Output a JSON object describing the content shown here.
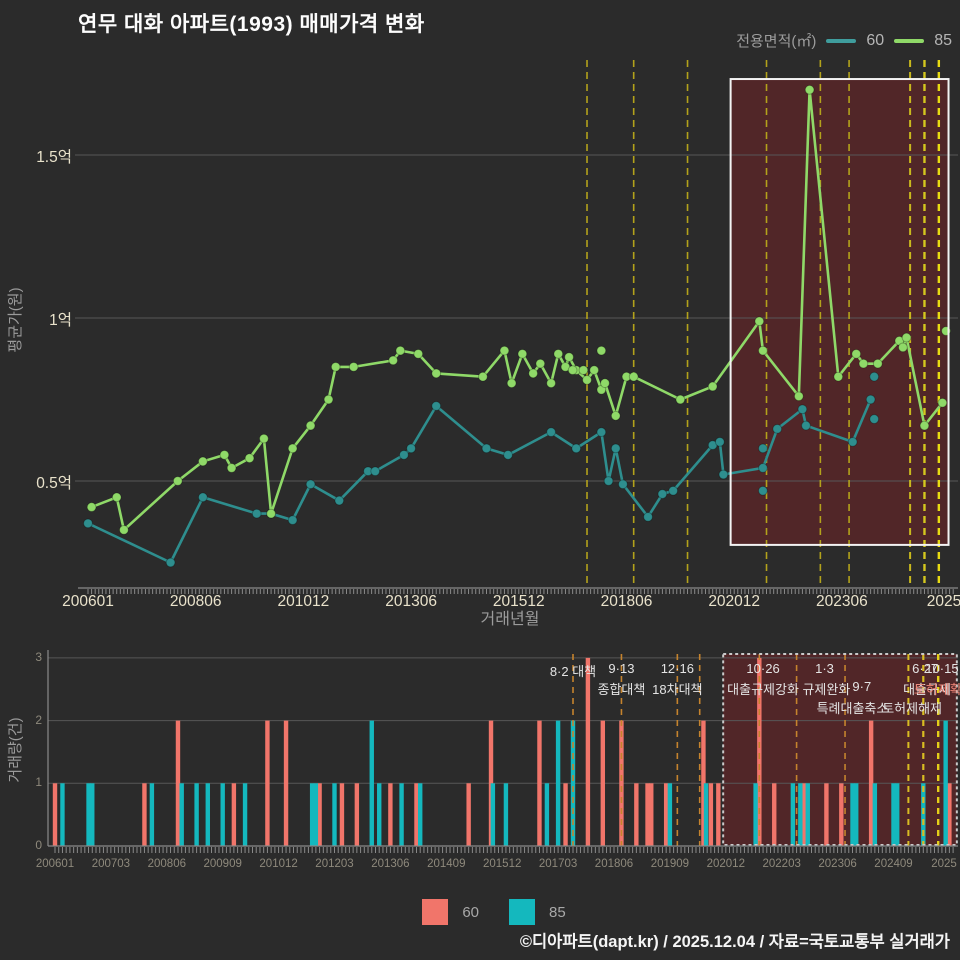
{
  "title": "연무 대화 아파트(1993) 매매가격 변화",
  "legend_top": {
    "label": "전용면적(㎡)",
    "items": [
      {
        "name": "60",
        "color": "#3f9d9d"
      },
      {
        "name": "85",
        "color": "#8fd968"
      }
    ]
  },
  "legend_bottom": {
    "items": [
      {
        "name": "60",
        "color": "#f1756a"
      },
      {
        "name": "85",
        "color": "#14b8be"
      }
    ]
  },
  "footer": "©디아파트(dapt.kr) / 2025.12.04 / 자료=국토교통부 실거래가",
  "chart_data": [
    {
      "type": "line",
      "title": "매매가격 변화",
      "xlabel": "거래년월",
      "ylabel": "평균가(원)",
      "x_unit": "months since 2006-01",
      "y_unit": "억원",
      "ylim": [
        0.17,
        1.79
      ],
      "grid": true,
      "x_ticks": [
        {
          "label": "200601",
          "m": 0
        },
        {
          "label": "200806",
          "m": 30
        },
        {
          "label": "201012",
          "m": 60
        },
        {
          "label": "201306",
          "m": 90
        },
        {
          "label": "201512",
          "m": 120
        },
        {
          "label": "201806",
          "m": 150
        },
        {
          "label": "202012",
          "m": 180
        },
        {
          "label": "202306",
          "m": 210
        },
        {
          "label": "2025",
          "m": 240
        }
      ],
      "y_ticks": [
        {
          "label": "0.5억",
          "v": 0.5
        },
        {
          "label": "1억",
          "v": 1.0
        },
        {
          "label": "1.5억",
          "v": 1.5
        }
      ],
      "series": [
        {
          "name": "60",
          "color": "#2e8e8e",
          "points": [
            [
              0,
              0.37
            ],
            [
              23,
              0.25
            ],
            [
              32,
              0.45
            ],
            [
              47,
              0.4
            ],
            [
              51,
              0.4
            ],
            [
              57,
              0.38
            ],
            [
              62,
              0.49
            ],
            [
              70,
              0.44
            ],
            [
              78,
              0.53
            ],
            [
              80,
              0.53
            ],
            [
              88,
              0.58
            ],
            [
              90,
              0.6
            ],
            [
              97,
              0.73
            ],
            [
              111,
              0.6
            ],
            [
              117,
              0.58
            ],
            [
              129,
              0.65
            ],
            [
              136,
              0.6
            ],
            [
              143,
              0.65
            ],
            [
              145,
              0.5
            ],
            [
              147,
              0.6
            ],
            [
              149,
              0.49
            ],
            [
              156,
              0.39
            ],
            [
              160,
              0.46
            ],
            [
              163,
              0.47
            ],
            [
              174,
              0.61
            ],
            [
              176,
              0.62
            ],
            [
              177,
              0.52
            ],
            [
              188,
              0.54
            ],
            [
              192,
              0.66
            ],
            [
              199,
              0.72
            ],
            [
              200,
              0.67
            ],
            [
              213,
              0.62
            ],
            [
              218,
              0.75
            ]
          ]
        },
        {
          "name": "85",
          "color": "#8fd968",
          "points": [
            [
              1,
              0.42
            ],
            [
              8,
              0.45
            ],
            [
              10,
              0.35
            ],
            [
              25,
              0.5
            ],
            [
              32,
              0.56
            ],
            [
              38,
              0.58
            ],
            [
              40,
              0.54
            ],
            [
              45,
              0.57
            ],
            [
              49,
              0.63
            ],
            [
              51,
              0.4
            ],
            [
              57,
              0.6
            ],
            [
              62,
              0.67
            ],
            [
              67,
              0.75
            ],
            [
              69,
              0.85
            ],
            [
              74,
              0.85
            ],
            [
              85,
              0.87
            ],
            [
              87,
              0.9
            ],
            [
              92,
              0.89
            ],
            [
              97,
              0.83
            ],
            [
              110,
              0.82
            ],
            [
              116,
              0.9
            ],
            [
              118,
              0.8
            ],
            [
              121,
              0.89
            ],
            [
              124,
              0.83
            ],
            [
              126,
              0.86
            ],
            [
              129,
              0.8
            ],
            [
              131,
              0.89
            ],
            [
              133,
              0.85
            ],
            [
              134,
              0.88
            ],
            [
              136,
              0.84
            ],
            [
              139,
              0.81
            ],
            [
              141,
              0.84
            ],
            [
              143,
              0.78
            ],
            [
              144,
              0.8
            ],
            [
              147,
              0.7
            ],
            [
              150,
              0.82
            ],
            [
              152,
              0.82
            ],
            [
              165,
              0.75
            ],
            [
              174,
              0.79
            ],
            [
              187,
              0.99
            ],
            [
              188,
              0.9
            ],
            [
              198,
              0.76
            ],
            [
              201,
              1.7
            ],
            [
              209,
              0.82
            ],
            [
              214,
              0.89
            ],
            [
              216,
              0.86
            ],
            [
              220,
              0.86
            ],
            [
              226,
              0.93
            ],
            [
              227,
              0.91
            ],
            [
              228,
              0.94
            ],
            [
              233,
              0.67
            ],
            [
              238,
              0.74
            ]
          ]
        }
      ],
      "extra_dots": [
        {
          "series": "60",
          "color": "#2e8e8e",
          "points": [
            [
              188,
              0.6
            ],
            [
              188,
              0.47
            ],
            [
              219,
              0.82
            ],
            [
              219,
              0.69
            ]
          ]
        },
        {
          "series": "85",
          "color": "#8fd968",
          "points": [
            [
              135,
              0.84
            ],
            [
              138,
              0.84
            ],
            [
              143,
              0.9
            ],
            [
              239,
              0.96
            ]
          ]
        }
      ],
      "policy_lines": [
        {
          "m": 139,
          "color": "#b3a21b",
          "w": 1.6
        },
        {
          "m": 152,
          "color": "#b3a21b",
          "w": 1.6
        },
        {
          "m": 167,
          "color": "#b3a21b",
          "w": 1.6
        },
        {
          "m": 189,
          "color": "#b3a21b",
          "w": 1.6
        },
        {
          "m": 204,
          "color": "#b3a21b",
          "w": 1.6
        },
        {
          "m": 212,
          "color": "#b3a21b",
          "w": 1.6
        },
        {
          "m": 229,
          "color": "#c9b91d",
          "w": 2.0
        },
        {
          "m": 233,
          "color": "#d4c71e",
          "w": 2.4
        },
        {
          "m": 237,
          "color": "#e9dc12",
          "w": 2.4
        }
      ],
      "highlight_box": {
        "m_start": 179,
        "m_end": 239.7,
        "v_top": 1.733,
        "v_bottom": 0.304,
        "fill": "rgba(160,30,36,0.33)",
        "border": "#f3f3f3"
      }
    },
    {
      "type": "bar",
      "xlabel": "",
      "ylabel": "거래량(건)",
      "x_unit": "months since 2006-01",
      "y_unit": "건",
      "ylim": [
        0,
        3
      ],
      "grid": true,
      "x_ticks": [
        {
          "label": "200601",
          "m": 0
        },
        {
          "label": "200703",
          "m": 15
        },
        {
          "label": "200806",
          "m": 30
        },
        {
          "label": "200909",
          "m": 45
        },
        {
          "label": "201012",
          "m": 60
        },
        {
          "label": "201203",
          "m": 75
        },
        {
          "label": "201306",
          "m": 90
        },
        {
          "label": "201409",
          "m": 105
        },
        {
          "label": "201512",
          "m": 120
        },
        {
          "label": "201703",
          "m": 135
        },
        {
          "label": "201806",
          "m": 150
        },
        {
          "label": "201909",
          "m": 165
        },
        {
          "label": "202012",
          "m": 180
        },
        {
          "label": "202203",
          "m": 195
        },
        {
          "label": "202306",
          "m": 210
        },
        {
          "label": "202409",
          "m": 225
        },
        {
          "label": "2025",
          "m": 240
        }
      ],
      "y_ticks": [
        {
          "label": "0",
          "v": 0
        },
        {
          "label": "1",
          "v": 1
        },
        {
          "label": "2",
          "v": 2
        },
        {
          "label": "3",
          "v": 3
        }
      ],
      "series": [
        {
          "name": "60",
          "color": "#f1756a",
          "bars": [
            [
              0,
              1
            ],
            [
              24,
              1
            ],
            [
              33,
              2
            ],
            [
              48,
              1
            ],
            [
              57,
              2
            ],
            [
              62,
              2
            ],
            [
              71,
              1
            ],
            [
              77,
              1
            ],
            [
              81,
              1
            ],
            [
              90,
              1
            ],
            [
              97,
              1
            ],
            [
              111,
              1
            ],
            [
              117,
              2
            ],
            [
              130,
              2
            ],
            [
              137,
              1
            ],
            [
              143,
              3
            ],
            [
              147,
              2
            ],
            [
              152,
              2
            ],
            [
              156,
              1
            ],
            [
              159,
              1
            ],
            [
              160,
              1
            ],
            [
              164,
              1
            ],
            [
              174,
              2
            ],
            [
              176,
              1
            ],
            [
              178,
              1
            ],
            [
              189,
              3
            ],
            [
              193,
              1
            ],
            [
              201,
              1
            ],
            [
              207,
              1
            ],
            [
              211,
              1
            ],
            [
              219,
              2
            ],
            [
              240,
              1
            ]
          ]
        },
        {
          "name": "85",
          "color": "#14b8be",
          "bars": [
            [
              2,
              1
            ],
            [
              9,
              1
            ],
            [
              10,
              1
            ],
            [
              26,
              1
            ],
            [
              34,
              1
            ],
            [
              38,
              1
            ],
            [
              41,
              1
            ],
            [
              45,
              1
            ],
            [
              51,
              1
            ],
            [
              69,
              1
            ],
            [
              70,
              1
            ],
            [
              75,
              1
            ],
            [
              85,
              2
            ],
            [
              87,
              1
            ],
            [
              93,
              1
            ],
            [
              98,
              1
            ],
            [
              117.5,
              1
            ],
            [
              121,
              1
            ],
            [
              132,
              1
            ],
            [
              135,
              2
            ],
            [
              139,
              2
            ],
            [
              165,
              1
            ],
            [
              174.7,
              1
            ],
            [
              188,
              1
            ],
            [
              198,
              1
            ],
            [
              200,
              1
            ],
            [
              202,
              1
            ],
            [
              214,
              1
            ],
            [
              215,
              1
            ],
            [
              220,
              1
            ],
            [
              225,
              1
            ],
            [
              226,
              1
            ],
            [
              233,
              1
            ],
            [
              239,
              2
            ]
          ]
        }
      ],
      "policy_lines": [
        {
          "m": 139,
          "color": "#c5832d",
          "w": 1.6
        },
        {
          "m": 152,
          "color": "#c5832d",
          "w": 1.6
        },
        {
          "m": 167,
          "color": "#c5832d",
          "w": 1.6
        },
        {
          "m": 173,
          "color": "#c5832d",
          "w": 1.6
        },
        {
          "m": 189,
          "color": "#c5832d",
          "w": 1.6
        },
        {
          "m": 199,
          "color": "#c5832d",
          "w": 1.6
        },
        {
          "m": 212,
          "color": "#c5832d",
          "w": 1.6
        },
        {
          "m": 229,
          "color": "#d9bd22",
          "w": 2.0
        },
        {
          "m": 233,
          "color": "#d9bd22",
          "w": 2.2
        },
        {
          "m": 237,
          "color": "#e4d019",
          "w": 2.4
        }
      ],
      "annotations": [
        {
          "m": 139,
          "row": 1,
          "text": "8·2 대책"
        },
        {
          "m": 152,
          "row": 1,
          "text": "9·13"
        },
        {
          "m": 152,
          "row": 2,
          "text": "종합대책"
        },
        {
          "m": 167,
          "row": 1,
          "text": "12·16"
        },
        {
          "m": 167,
          "row": 2,
          "text": "18차대책"
        },
        {
          "m": 190,
          "row": 1,
          "text": "10·26"
        },
        {
          "m": 190,
          "row": 2,
          "text": "대출규제강화"
        },
        {
          "m": 206.5,
          "row": 1,
          "text": "1·3"
        },
        {
          "m": 207,
          "row": 2,
          "text": "규제완화"
        },
        {
          "m": 216.5,
          "row": 2,
          "text": "9·7"
        },
        {
          "m": 214,
          "row": 3,
          "text": "특례대출축소"
        },
        {
          "m": 230,
          "row": 3,
          "text": "토허제해제"
        },
        {
          "m": 233.5,
          "row": 1,
          "text": "6·27"
        },
        {
          "m": 234,
          "row": 2,
          "text": "대출규제"
        },
        {
          "m": 238,
          "row": 1,
          "text": "10·15"
        },
        {
          "m": 238.5,
          "row": 2,
          "text": "토허제확대",
          "color": "#ef8678"
        }
      ],
      "highlight_box": {
        "m_start": 179.3,
        "m_end": 242,
        "fill": "rgba(160,30,36,0.33)",
        "border": "#c9c9c9"
      }
    }
  ]
}
